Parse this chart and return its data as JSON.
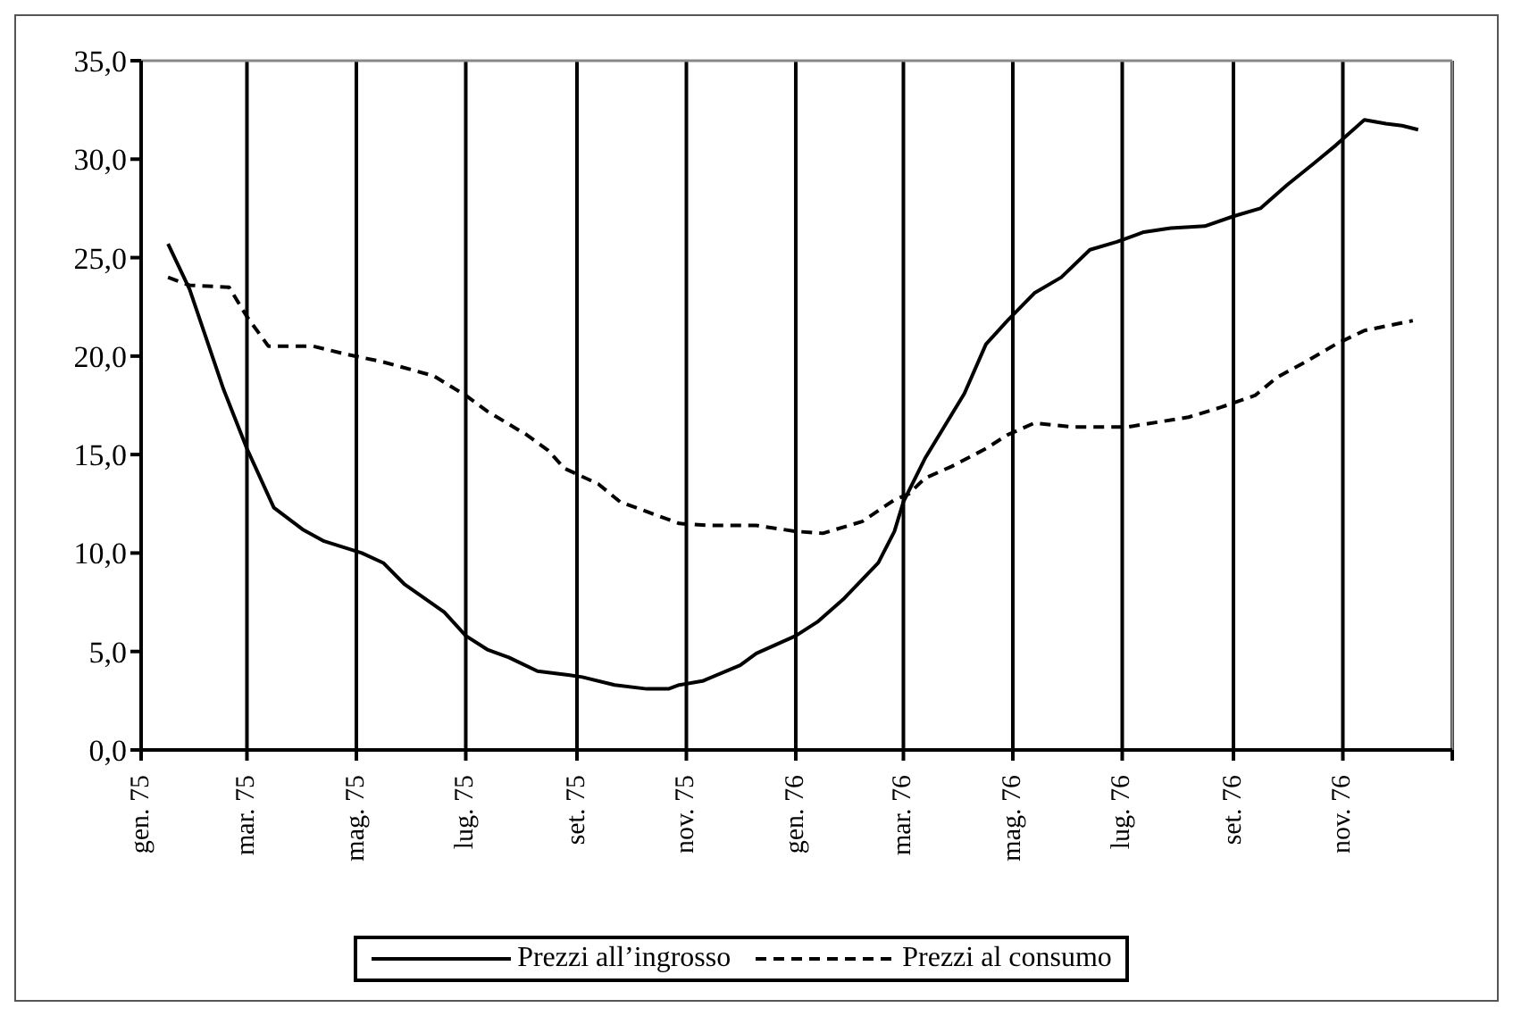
{
  "chart_data": {
    "type": "line",
    "xlim": [
      "1975-01-01",
      "1977-01-01"
    ],
    "xticks": [
      {
        "value": "1975-01-01",
        "label": "gen. 75"
      },
      {
        "value": "1975-03-01",
        "label": "mar. 75"
      },
      {
        "value": "1975-05-01",
        "label": "mag. 75"
      },
      {
        "value": "1975-07-01",
        "label": "lug. 75"
      },
      {
        "value": "1975-09-01",
        "label": "set. 75"
      },
      {
        "value": "1975-11-01",
        "label": "nov. 75"
      },
      {
        "value": "1976-01-01",
        "label": "gen. 76"
      },
      {
        "value": "1976-03-01",
        "label": "mar. 76"
      },
      {
        "value": "1976-05-01",
        "label": "mag. 76"
      },
      {
        "value": "1976-07-01",
        "label": "lug. 76"
      },
      {
        "value": "1976-09-01",
        "label": "set. 76"
      },
      {
        "value": "1976-11-01",
        "label": "nov. 76"
      },
      {
        "value": "1977-01-01",
        "label": null
      }
    ],
    "ylim": [
      0,
      35
    ],
    "yticks": [
      {
        "value": 0,
        "label": "0,0"
      },
      {
        "value": 5,
        "label": "5,0"
      },
      {
        "value": 10,
        "label": "10,0"
      },
      {
        "value": 15,
        "label": "15,0"
      },
      {
        "value": 20,
        "label": "20,0"
      },
      {
        "value": 25,
        "label": "25,0"
      },
      {
        "value": 30,
        "label": "30,0"
      },
      {
        "value": 35,
        "label": "35,0"
      }
    ],
    "grid": "x",
    "legend": "bottom",
    "marker": "none",
    "series": [
      {
        "name": "Prezzi all’ingrosso",
        "color": "#000000",
        "line_style": "solid",
        "x": [
          "1975-01-16",
          "1975-01-28",
          "1975-02-16",
          "1975-03-01",
          "1975-03-16",
          "1975-04-01",
          "1975-04-13",
          "1975-05-04",
          "1975-05-16",
          "1975-05-28",
          "1975-06-19",
          "1975-07-01",
          "1975-07-13",
          "1975-07-25",
          "1975-08-10",
          "1975-08-28",
          "1975-09-04",
          "1975-09-22",
          "1975-10-10",
          "1975-10-22",
          "1975-10-28",
          "1975-11-10",
          "1975-12-01",
          "1975-12-10",
          "1976-01-01",
          "1976-01-13",
          "1976-01-28",
          "1976-02-16",
          "1976-02-25",
          "1976-03-01",
          "1976-03-13",
          "1976-04-04",
          "1976-04-16",
          "1976-04-28",
          "1976-05-13",
          "1976-05-28",
          "1976-06-13",
          "1976-06-28",
          "1976-07-13",
          "1976-07-28",
          "1976-08-16",
          "1976-09-01",
          "1976-09-16",
          "1976-10-01",
          "1976-10-16",
          "1976-10-28",
          "1976-11-13",
          "1976-11-25",
          "1976-12-04",
          "1976-12-13"
        ],
        "values": [
          25.7,
          23.4,
          18.3,
          15.3,
          12.3,
          11.2,
          10.6,
          10.0,
          9.5,
          8.4,
          7.0,
          5.8,
          5.1,
          4.7,
          4.0,
          3.8,
          3.7,
          3.3,
          3.1,
          3.1,
          3.3,
          3.5,
          4.3,
          4.9,
          5.8,
          6.5,
          7.7,
          9.5,
          11.1,
          12.6,
          14.8,
          18.1,
          20.6,
          21.8,
          23.2,
          24.0,
          25.4,
          25.8,
          26.3,
          26.5,
          26.6,
          27.1,
          27.5,
          28.7,
          29.8,
          30.7,
          32.0,
          31.8,
          31.7,
          31.5
        ]
      },
      {
        "name": "Prezzi al consumo",
        "color": "#000000",
        "line_style": "dashed",
        "x": [
          "1975-01-16",
          "1975-01-28",
          "1975-02-19",
          "1975-03-01",
          "1975-03-13",
          "1975-04-07",
          "1975-04-25",
          "1975-05-16",
          "1975-06-13",
          "1975-07-01",
          "1975-07-13",
          "1975-08-04",
          "1975-08-16",
          "1975-08-25",
          "1975-09-13",
          "1975-09-25",
          "1975-10-13",
          "1975-10-28",
          "1975-11-13",
          "1975-12-10",
          "1976-01-01",
          "1976-01-16",
          "1976-02-07",
          "1976-02-25",
          "1976-03-04",
          "1976-03-13",
          "1976-03-28",
          "1976-04-16",
          "1976-04-28",
          "1976-05-13",
          "1976-06-04",
          "1976-07-04",
          "1976-08-07",
          "1976-08-25",
          "1976-09-13",
          "1976-09-25",
          "1976-10-13",
          "1976-10-28",
          "1976-11-13",
          "1976-12-10"
        ],
        "values": [
          24.0,
          23.6,
          23.5,
          22.0,
          20.5,
          20.5,
          20.1,
          19.7,
          19.0,
          18.0,
          17.2,
          16.0,
          15.2,
          14.3,
          13.5,
          12.6,
          12.0,
          11.5,
          11.4,
          11.4,
          11.1,
          11.0,
          11.6,
          12.7,
          13.0,
          13.8,
          14.4,
          15.3,
          16.0,
          16.6,
          16.4,
          16.4,
          16.9,
          17.4,
          18.0,
          18.9,
          19.8,
          20.6,
          21.3,
          21.8
        ]
      }
    ]
  }
}
